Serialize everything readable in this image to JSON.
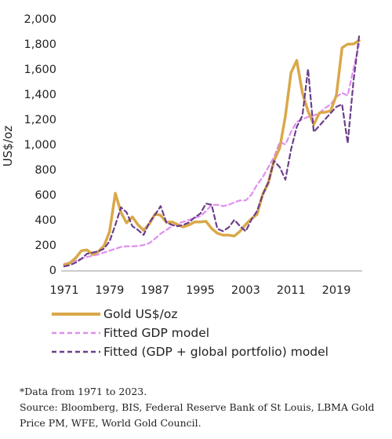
{
  "chart_data": {
    "type": "line",
    "title": "",
    "xlabel": "",
    "ylabel": "US$/oz",
    "ylim": [
      0,
      2000
    ],
    "xlim": [
      1971,
      2023
    ],
    "yticks": [
      "0",
      "200",
      "400",
      "600",
      "800",
      "1,000",
      "1,200",
      "1,400",
      "1,600",
      "1,800",
      "2,000"
    ],
    "xticks": [
      "1971",
      "1979",
      "1987",
      "1995",
      "2003",
      "2011",
      "2019"
    ],
    "grid": false,
    "legend_position": "bottom",
    "x": [
      1971,
      1972,
      1973,
      1974,
      1975,
      1976,
      1977,
      1978,
      1979,
      1980,
      1981,
      1982,
      1983,
      1984,
      1985,
      1986,
      1987,
      1988,
      1989,
      1990,
      1991,
      1992,
      1993,
      1994,
      1995,
      1996,
      1997,
      1998,
      1999,
      2000,
      2001,
      2002,
      2003,
      2004,
      2005,
      2006,
      2007,
      2008,
      2009,
      2010,
      2011,
      2012,
      2013,
      2014,
      2015,
      2016,
      2017,
      2018,
      2019,
      2020,
      2021,
      2022,
      2023
    ],
    "series": [
      {
        "name": "Gold US$/oz",
        "color": "#d9a84a",
        "style": "solid",
        "values": [
          41,
          58,
          97,
          154,
          161,
          125,
          148,
          193,
          307,
          612,
          460,
          376,
          424,
          361,
          317,
          368,
          447,
          437,
          381,
          384,
          362,
          344,
          360,
          384,
          384,
          388,
          331,
          294,
          279,
          279,
          271,
          310,
          363,
          409,
          444,
          604,
          695,
          872,
          972,
          1225,
          1572,
          1669,
          1411,
          1266,
          1160,
          1251,
          1257,
          1268,
          1393,
          1770,
          1799,
          1800,
          1826
        ]
      },
      {
        "name": "Fitted GDP model",
        "color": "#e08ef0",
        "style": "dash",
        "values": [
          50,
          60,
          75,
          90,
          105,
          115,
          125,
          140,
          155,
          170,
          185,
          190,
          190,
          192,
          200,
          215,
          250,
          290,
          320,
          350,
          370,
          385,
          400,
          415,
          430,
          470,
          520,
          520,
          510,
          520,
          540,
          555,
          555,
          600,
          680,
          740,
          820,
          900,
          1020,
          1000,
          1100,
          1180,
          1200,
          1220,
          1230,
          1250,
          1290,
          1320,
          1380,
          1410,
          1390,
          1600,
          1800
        ]
      },
      {
        "name": "Fitted (GDP + global portfolio) model",
        "color": "#6b3f8a",
        "style": "dash",
        "values": [
          30,
          40,
          60,
          90,
          130,
          140,
          150,
          170,
          230,
          360,
          500,
          460,
          350,
          320,
          280,
          380,
          440,
          510,
          380,
          360,
          350,
          360,
          380,
          420,
          450,
          530,
          520,
          330,
          310,
          340,
          400,
          350,
          310,
          400,
          470,
          600,
          700,
          870,
          820,
          720,
          960,
          1140,
          1230,
          1600,
          1100,
          1150,
          1200,
          1250,
          1300,
          1320,
          1010,
          1500,
          1860
        ]
      }
    ]
  },
  "notes": {
    "footnote": "*Data from 1971 to 2023.",
    "source": "Source:   Bloomberg, BIS, Federal Reserve Bank of St Louis, LBMA Gold Price PM, WFE, World Gold Council."
  }
}
